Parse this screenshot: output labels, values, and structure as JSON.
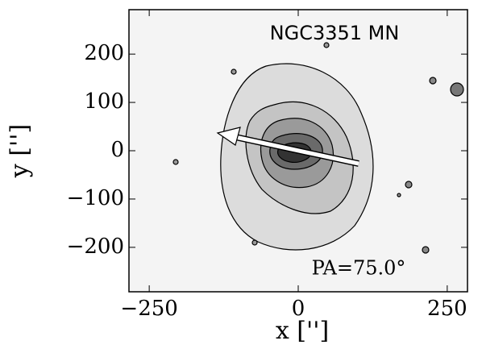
{
  "chart_data": {
    "type": "contour",
    "title": "NGC3351 MN",
    "annotation": "PA=75.0°",
    "x_label": "x ['']",
    "y_label": "y ['']",
    "xlim": [
      -284,
      284
    ],
    "ylim": [
      -292,
      292
    ],
    "xticks": [
      {
        "value": -250,
        "label": "−250"
      },
      0,
      250
    ],
    "yticks": [
      {
        "value": -200,
        "label": "−200"
      },
      {
        "value": -100,
        "label": "−100"
      },
      0,
      100,
      200
    ]
  }
}
